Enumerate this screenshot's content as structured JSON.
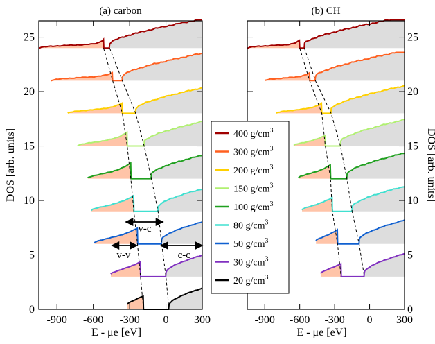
{
  "chart_data": [
    {
      "type": "line",
      "title": "(a) carbon",
      "xlabel": "E - μe [eV]",
      "ylabel": "DOS [arb. units]",
      "xlim": [
        -1050,
        300
      ],
      "ylim": [
        0,
        26.5
      ],
      "xticks": [
        -900,
        -600,
        -300,
        0,
        300
      ],
      "yticks": [
        0,
        5,
        10,
        15,
        20,
        25
      ],
      "annotations": [
        "v-c",
        "v-v",
        "c-c"
      ],
      "series": [
        {
          "name": "400 g/cm",
          "sup": "3",
          "color": "#a00000",
          "baseline": 24,
          "peak": -515,
          "gap": 50,
          "start": -1050,
          "slope": -0.0035,
          "rel": 0.002,
          "amp": 0.45,
          "noise": 0.12
        },
        {
          "name": "300 g/cm",
          "sup": "3",
          "color": "#ff6020",
          "baseline": 21,
          "peak": -440,
          "gap": 80,
          "start": -950,
          "slope": -0.004,
          "rel": 0.003,
          "amp": 0.35,
          "noise": 0.12
        },
        {
          "name": "200 g/cm",
          "sup": "3",
          "color": "#ffd000",
          "baseline": 18,
          "peak": -360,
          "gap": 110,
          "start": -810,
          "slope": -0.0048,
          "rel": 0.0038,
          "amp": 0.5,
          "noise": 0.1
        },
        {
          "name": "150 g/cm",
          "sup": "3",
          "color": "#b0f070",
          "baseline": 15,
          "peak": -320,
          "gap": 140,
          "start": -730,
          "slope": -0.0055,
          "rel": 0.0045,
          "amp": 0.8,
          "noise": 0.1
        },
        {
          "name": "100 g/cm",
          "sup": "3",
          "color": "#20a020",
          "baseline": 12,
          "peak": -290,
          "gap": 170,
          "start": -645,
          "slope": -0.0065,
          "rel": 0.005,
          "amp": 0.9,
          "noise": 0.09
        },
        {
          "name": "80 g/cm",
          "sup": "3",
          "color": "#40e0d0",
          "baseline": 9,
          "peak": -265,
          "gap": 200,
          "start": -615,
          "slope": -0.007,
          "rel": 0.0055,
          "amp": 0.9,
          "noise": 0.09
        },
        {
          "name": "50 g/cm",
          "sup": "3",
          "color": "#1060d0",
          "baseline": 6,
          "peak": -235,
          "gap": 200,
          "start": -590,
          "slope": -0.008,
          "rel": 0.006,
          "amp": 0.9,
          "noise": 0.07
        },
        {
          "name": "30 g/cm",
          "sup": "3",
          "color": "#8030c0",
          "baseline": 3,
          "peak": -210,
          "gap": 210,
          "start": -455,
          "slope": -0.009,
          "rel": 0.0065,
          "amp": 0.9,
          "noise": 0.06
        },
        {
          "name": "20 g/cm",
          "sup": "3",
          "color": "#000000",
          "baseline": 0,
          "peak": -185,
          "gap": 210,
          "start": -320,
          "slope": -0.01,
          "rel": 0.007,
          "amp": 0.9,
          "noise": 0.05
        }
      ]
    },
    {
      "type": "line",
      "title": "(b) CH",
      "xlabel": "E - μe [eV]",
      "ylabel": "DOS [arb. units]",
      "xlim": [
        -1050,
        300
      ],
      "ylim": [
        0,
        26.5
      ],
      "xticks": [
        -900,
        -600,
        -300,
        0,
        300
      ],
      "yticks": [
        0,
        5,
        10,
        15,
        20,
        25
      ],
      "series": [
        {
          "name": "400 g/cm",
          "sup": "3",
          "color": "#a00000",
          "baseline": 24,
          "peak": -600,
          "gap": 40,
          "start": -1050,
          "slope": -0.0035,
          "rel": 0.002,
          "amp": 0.4,
          "noise": 0.12
        },
        {
          "name": "300 g/cm",
          "sup": "3",
          "color": "#ff6020",
          "baseline": 21,
          "peak": -515,
          "gap": 50,
          "start": -900,
          "slope": -0.004,
          "rel": 0.003,
          "amp": 0.35,
          "noise": 0.12
        },
        {
          "name": "200 g/cm",
          "sup": "3",
          "color": "#ffd000",
          "baseline": 18,
          "peak": -410,
          "gap": 80,
          "start": -800,
          "slope": -0.0048,
          "rel": 0.0038,
          "amp": 0.5,
          "noise": 0.1
        },
        {
          "name": "150 g/cm",
          "sup": "3",
          "color": "#b0f070",
          "baseline": 15,
          "peak": -380,
          "gap": 130,
          "start": -650,
          "slope": -0.0055,
          "rel": 0.0045,
          "amp": 0.6,
          "noise": 0.1
        },
        {
          "name": "100 g/cm",
          "sup": "3",
          "color": "#20a020",
          "baseline": 12,
          "peak": -335,
          "gap": 140,
          "start": -610,
          "slope": -0.0065,
          "rel": 0.005,
          "amp": 0.8,
          "noise": 0.09
        },
        {
          "name": "80 g/cm",
          "sup": "3",
          "color": "#40e0d0",
          "baseline": 9,
          "peak": -320,
          "gap": 170,
          "start": -580,
          "slope": -0.007,
          "rel": 0.0055,
          "amp": 0.8,
          "noise": 0.09
        },
        {
          "name": "50 g/cm",
          "sup": "3",
          "color": "#1060d0",
          "baseline": 6,
          "peak": -275,
          "gap": 185,
          "start": -460,
          "slope": -0.008,
          "rel": 0.006,
          "amp": 0.9,
          "noise": 0.07
        },
        {
          "name": "30 g/cm",
          "sup": "3",
          "color": "#8030c0",
          "baseline": 3,
          "peak": -245,
          "gap": 200,
          "start": -420,
          "slope": -0.009,
          "rel": 0.0065,
          "amp": 0.8,
          "noise": 0.06
        }
      ]
    }
  ]
}
